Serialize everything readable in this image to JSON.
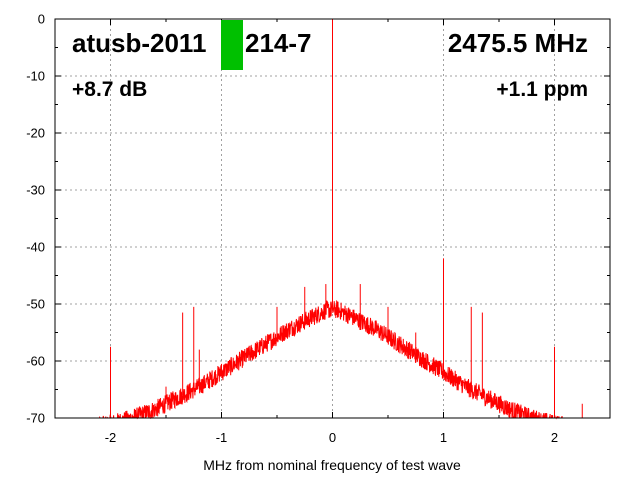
{
  "chart_data": {
    "type": "line",
    "title": "",
    "xlabel": "MHz from nominal frequency of test wave",
    "ylabel": "",
    "xlim": [
      -2.5,
      2.5
    ],
    "ylim": [
      -70,
      0
    ],
    "x_ticks": [
      -2,
      -1,
      0,
      1,
      2
    ],
    "x_tick_labels": [
      "-2",
      "-1",
      "0",
      "1",
      "2"
    ],
    "y_ticks": [
      0,
      -10,
      -20,
      -30,
      -40,
      -50,
      -60,
      -70
    ],
    "y_tick_labels": [
      "0",
      "-10",
      "-20",
      "-30",
      "-40",
      "-50",
      "-60",
      "-70"
    ],
    "grid": true,
    "series_color": "#ff0000",
    "marker_color": "#00c000",
    "annotations": {
      "device": "atusb-2011",
      "device_suffix": "214-7",
      "frequency": "2475.5 MHz",
      "gain": "+8.7 dB",
      "offset": "+1.1 ppm"
    },
    "noise_floor": {
      "x": [
        -2.3,
        -2.0,
        -1.8,
        -1.6,
        -1.4,
        -1.2,
        -1.0,
        -0.8,
        -0.6,
        -0.4,
        -0.2,
        -0.05,
        0.05,
        0.2,
        0.4,
        0.6,
        0.8,
        1.0,
        1.2,
        1.4,
        1.6,
        1.8,
        2.0,
        2.3
      ],
      "y": [
        -72,
        -71,
        -70,
        -68.5,
        -66.5,
        -64.5,
        -62,
        -59.5,
        -57,
        -54.5,
        -52.5,
        -51,
        -51,
        -52.5,
        -54.5,
        -57,
        -59.5,
        -62,
        -64.5,
        -66.5,
        -68.5,
        -70,
        -71,
        -72
      ]
    },
    "spurs": {
      "x": [
        -2.0,
        -1.35,
        -1.25,
        -0.73,
        -0.5,
        -0.25,
        -0.06,
        0.0,
        0.25,
        0.5,
        1.0,
        1.25,
        1.35,
        2.0,
        -1.5,
        -1.2,
        -1.0,
        0.75,
        2.25
      ],
      "y": [
        -57.5,
        -51.5,
        -50.5,
        -57.5,
        -50.5,
        -47,
        -46.5,
        0,
        -46.5,
        -50.5,
        -42,
        -50.5,
        -51.5,
        -57.5,
        -64.5,
        -58,
        -60.5,
        -55,
        -67.5
      ]
    }
  }
}
